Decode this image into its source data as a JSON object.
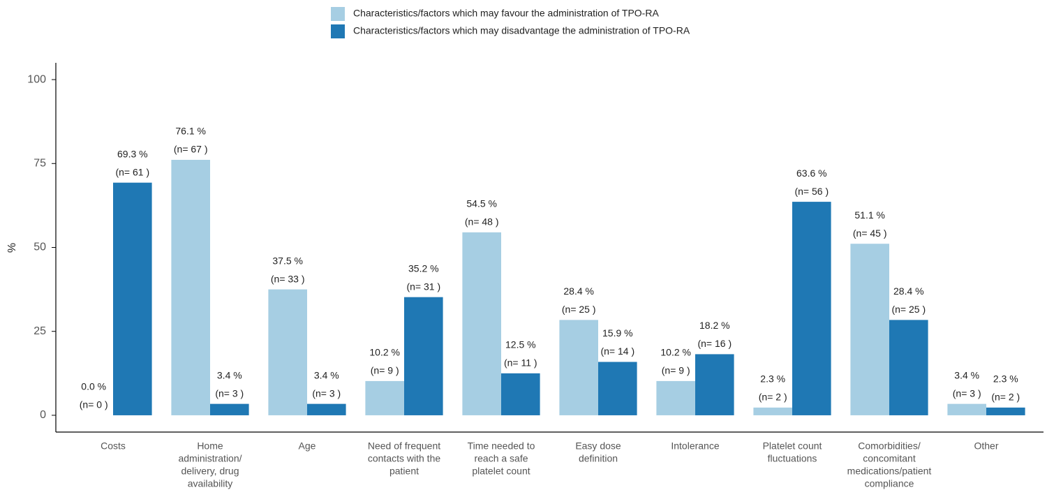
{
  "chart_data": {
    "type": "bar",
    "categories": [
      [
        "Costs"
      ],
      [
        "Home",
        "administration/",
        "delivery, drug",
        "availability"
      ],
      [
        "Age"
      ],
      [
        "Need of frequent",
        "contacts with the",
        "patient"
      ],
      [
        "Time needed to",
        "reach a safe",
        "platelet count"
      ],
      [
        "Easy dose",
        "definition"
      ],
      [
        "Intolerance"
      ],
      [
        "Platelet count",
        "fluctuations"
      ],
      [
        "Comorbidities/",
        "concomitant",
        "medications/patient",
        "compliance"
      ],
      [
        "Other"
      ]
    ],
    "series": [
      {
        "name": "Characteristics/factors which may favour the administration of TPO-RA",
        "color": "#a6cee3",
        "values": [
          0.0,
          76.1,
          37.5,
          10.2,
          54.5,
          28.4,
          10.2,
          2.3,
          51.1,
          3.4
        ],
        "value_labels": [
          "0.0 %",
          "76.1 %",
          "37.5 %",
          "10.2 %",
          "54.5 %",
          "28.4 %",
          "10.2 %",
          "2.3 %",
          "51.1 %",
          "3.4 %"
        ],
        "n_labels": [
          "(n= 0 )",
          "(n= 67 )",
          "(n= 33 )",
          "(n= 9 )",
          "(n= 48 )",
          "(n= 25 )",
          "(n= 9 )",
          "(n= 2 )",
          "(n= 45 )",
          "(n= 3 )"
        ]
      },
      {
        "name": "Characteristics/factors which may disadvantage the administration of TPO-RA",
        "color": "#1f78b4",
        "values": [
          69.3,
          3.4,
          3.4,
          35.2,
          12.5,
          15.9,
          18.2,
          63.6,
          28.4,
          2.3
        ],
        "value_labels": [
          "69.3 %",
          "3.4 %",
          "3.4 %",
          "35.2 %",
          "12.5 %",
          "15.9 %",
          "18.2 %",
          "63.6 %",
          "28.4 %",
          "2.3 %"
        ],
        "n_labels": [
          "(n= 61 )",
          "(n= 3 )",
          "(n= 3 )",
          "(n= 31 )",
          "(n= 11 )",
          "(n= 14 )",
          "(n= 16 )",
          "(n= 56 )",
          "(n= 25 )",
          "(n= 2 )"
        ]
      }
    ],
    "y_label": "%",
    "ylim": [
      -5,
      105
    ],
    "yticks": [
      0,
      25,
      50,
      75,
      100
    ],
    "grid": false,
    "legend": "top"
  }
}
